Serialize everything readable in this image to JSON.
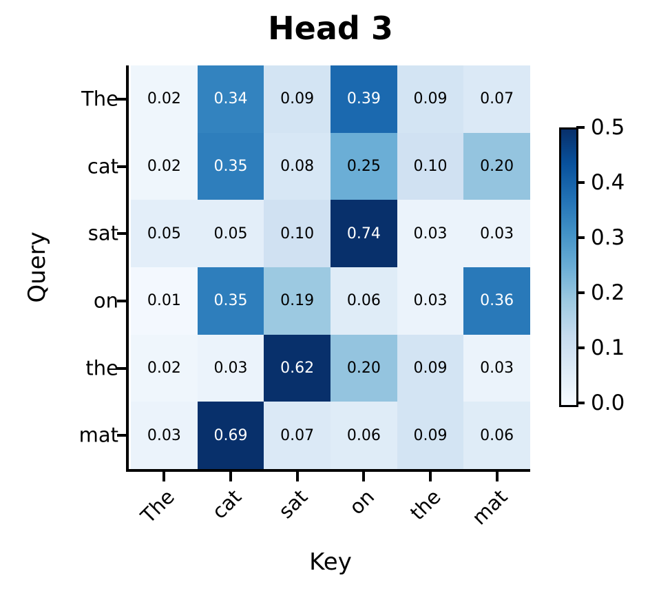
{
  "chart_data": {
    "type": "heatmap",
    "title": "Head 3",
    "xlabel": "Key",
    "ylabel": "Query",
    "x_tick_labels": [
      "The",
      "cat",
      "sat",
      "on",
      "the",
      "mat"
    ],
    "y_tick_labels": [
      "The",
      "cat",
      "sat",
      "on",
      "the",
      "mat"
    ],
    "values": [
      [
        0.02,
        0.34,
        0.09,
        0.39,
        0.09,
        0.07
      ],
      [
        0.02,
        0.35,
        0.08,
        0.25,
        0.1,
        0.2
      ],
      [
        0.05,
        0.05,
        0.1,
        0.74,
        0.03,
        0.03
      ],
      [
        0.01,
        0.35,
        0.19,
        0.06,
        0.03,
        0.36
      ],
      [
        0.02,
        0.03,
        0.62,
        0.2,
        0.09,
        0.03
      ],
      [
        0.03,
        0.69,
        0.07,
        0.06,
        0.09,
        0.06
      ]
    ],
    "value_decimals": 2,
    "colormap": "Blues",
    "vmin": 0.0,
    "vmax": 0.5,
    "colormap_stops": [
      [
        0.0,
        "#f7fbff"
      ],
      [
        0.125,
        "#deebf7"
      ],
      [
        0.25,
        "#c6dbef"
      ],
      [
        0.375,
        "#9ecae1"
      ],
      [
        0.5,
        "#6baed6"
      ],
      [
        0.625,
        "#4292c6"
      ],
      [
        0.75,
        "#2171b5"
      ],
      [
        0.875,
        "#08519c"
      ],
      [
        1.0,
        "#08306b"
      ]
    ],
    "annotation_text_colors": {
      "light": "#ffffff",
      "dark": "#000000"
    },
    "colorbar": {
      "position": "right",
      "tick_labels": [
        "0.5",
        "0.4",
        "0.3",
        "0.2",
        "0.1",
        "0.0"
      ]
    },
    "grid": false,
    "legend": false
  }
}
